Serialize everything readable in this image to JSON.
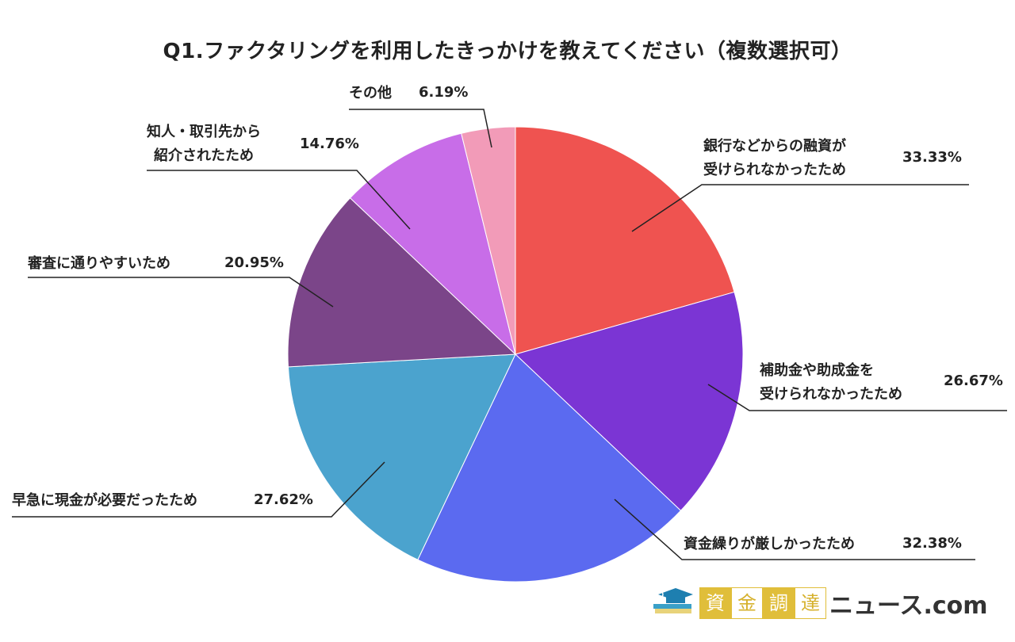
{
  "title": "Q1.ファクタリングを利用したきっかけを教えてください（複数選択可）",
  "chart_data": {
    "type": "pie",
    "title": "Q1.ファクタリングを利用したきっかけを教えてください（複数選択可）",
    "slices": [
      {
        "label": "銀行などからの融資が\n受けられなかったため",
        "label_lines": [
          "銀行などからの融資が",
          "受けられなかったため"
        ],
        "value": 33.33,
        "pct": "33.33%",
        "color": "#EF5350"
      },
      {
        "label": "補助金や助成金を\n受けられなかったため",
        "label_lines": [
          "補助金や助成金を",
          "受けられなかったため"
        ],
        "value": 26.67,
        "pct": "26.67%",
        "color": "#7B35D4"
      },
      {
        "label": "資金繰りが厳しかったため",
        "label_lines": [
          "資金繰りが厳しかったため"
        ],
        "value": 32.38,
        "pct": "32.38%",
        "color": "#5B6AF0"
      },
      {
        "label": "早急に現金が必要だったため",
        "label_lines": [
          "早急に現金が必要だったため"
        ],
        "value": 27.62,
        "pct": "27.62%",
        "color": "#4BA3CE"
      },
      {
        "label": "審査に通りやすいため",
        "label_lines": [
          "審査に通りやすいため"
        ],
        "value": 20.95,
        "pct": "20.95%",
        "color": "#7B4589"
      },
      {
        "label": "知人・取引先から\n紹介されたため",
        "label_lines": [
          "知人・取引先から",
          "紹介されたため"
        ],
        "value": 14.76,
        "pct": "14.76%",
        "color": "#C86DE8"
      },
      {
        "label": "その他",
        "label_lines": [
          "その他"
        ],
        "value": 6.19,
        "pct": "6.19%",
        "color": "#F29BB8"
      }
    ]
  },
  "logo": {
    "chars": [
      "資",
      "金",
      "調",
      "達"
    ],
    "tail": "ニュース.com"
  }
}
